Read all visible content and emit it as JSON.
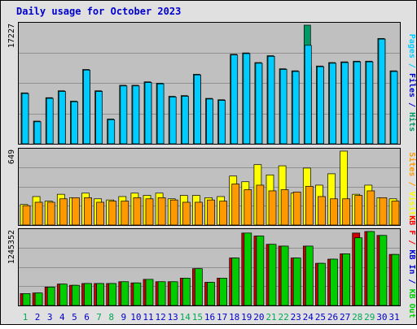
{
  "chart_data": {
    "type": "bar",
    "title": "Daily usage for October 2023",
    "days": [
      "1",
      "2",
      "3",
      "4",
      "5",
      "6",
      "7",
      "8",
      "9",
      "10",
      "11",
      "12",
      "13",
      "14",
      "15",
      "16",
      "17",
      "18",
      "19",
      "20",
      "21",
      "22",
      "23",
      "24",
      "25",
      "26",
      "27",
      "28",
      "29",
      "30",
      "31"
    ],
    "weekend_days": [
      "1",
      "7",
      "8",
      "14",
      "15",
      "21",
      "22",
      "28",
      "29"
    ],
    "colors": {
      "frame_bg": "#E0E0E0",
      "plot_bg": "#C0C0C0",
      "border": "#000000",
      "title": "#0000CC",
      "weekday_label": "#0000CC",
      "weekend_label": "#00AA55",
      "gridline": "#909090"
    },
    "panels": [
      {
        "id": "pages-files-hits",
        "max_label": "17227",
        "ymax": 17227,
        "legend": [
          {
            "text": "Pages",
            "color": "#00CCFF"
          },
          {
            "text": " / ",
            "color": "#00CCFF"
          },
          {
            "text": "Files",
            "color": "#0000CC"
          },
          {
            "text": " / ",
            "color": "#0000CC"
          },
          {
            "text": "Hits",
            "color": "#009966"
          }
        ],
        "series": [
          {
            "name": "Hits",
            "color": "#009966",
            "values": [
              7400,
              3300,
              6700,
              7700,
              6200,
              10800,
              7700,
              3600,
              8500,
              8500,
              9000,
              8800,
              6900,
              7000,
              10100,
              6600,
              6400,
              13000,
              13200,
              11800,
              12800,
              10900,
              10600,
              17227,
              11300,
              11800,
              11900,
              12000,
              12000,
              15300,
              10600
            ]
          },
          {
            "name": "Files",
            "color": "#0000CC",
            "values": [
              7300,
              3200,
              6600,
              7600,
              6100,
              10700,
              7600,
              3500,
              8400,
              8400,
              8900,
              8700,
              6800,
              6900,
              10000,
              6500,
              6300,
              12900,
              13100,
              11700,
              12700,
              10800,
              10500,
              11200,
              11200,
              11700,
              11800,
              11900,
              11900,
              15200,
              10500
            ]
          },
          {
            "name": "Pages",
            "color": "#00CCFF",
            "values": [
              7300,
              3200,
              6600,
              7600,
              6100,
              10700,
              7600,
              3500,
              8400,
              8400,
              8900,
              8700,
              6800,
              6900,
              10000,
              6500,
              6300,
              12900,
              13100,
              11700,
              12700,
              10800,
              10500,
              14300,
              11200,
              11700,
              11800,
              11900,
              11900,
              15200,
              10500
            ]
          }
        ]
      },
      {
        "id": "visits-sites",
        "max_label": "649",
        "ymax": 649,
        "legend": [
          {
            "text": "Sites",
            "color": "#FF9900"
          },
          {
            "text": " / ",
            "color": "#FF9900"
          },
          {
            "text": "Visits",
            "color": "#FFFF00"
          }
        ],
        "series": [
          {
            "name": "Visits",
            "color": "#FFFF00",
            "values": [
              180,
              250,
              210,
              270,
              240,
              280,
              230,
              220,
              250,
              280,
              260,
              280,
              230,
              260,
              260,
              240,
              250,
              430,
              380,
              530,
              440,
              520,
              280,
              500,
              350,
              450,
              649,
              270,
              350,
              240,
              230
            ]
          },
          {
            "name": "Sites",
            "color": "#FF9900",
            "values": [
              170,
              200,
              200,
              230,
              240,
              240,
              200,
              210,
              210,
              240,
              230,
              240,
              220,
              200,
              200,
              220,
              210,
              360,
              310,
              350,
              300,
              310,
              290,
              340,
              250,
              230,
              230,
              260,
              300,
              240,
              210
            ]
          }
        ]
      },
      {
        "id": "kbf-kbin-kbout",
        "max_label": "1245352",
        "ymax": 1245352,
        "legend": [
          {
            "text": "KB F",
            "color": "#FF0000"
          },
          {
            "text": " / ",
            "color": "#FF0000"
          },
          {
            "text": "KB In",
            "color": "#0000CC"
          },
          {
            "text": " / ",
            "color": "#0000CC"
          },
          {
            "text": "KB Out",
            "color": "#00CC00"
          }
        ],
        "series": [
          {
            "name": "KB F",
            "color": "#CC0000",
            "values": [
              200000,
              210000,
              310000,
              360000,
              340000,
              370000,
              370000,
              370000,
              400000,
              380000,
              440000,
              400000,
              400000,
              460000,
              620000,
              390000,
              460000,
              800000,
              1220000,
              1170000,
              1030000,
              1000000,
              800000,
              1000000,
              710000,
              780000,
              870000,
              1220000,
              1245352,
              1180000,
              860000
            ]
          },
          {
            "name": "KB Out",
            "color": "#00CC00",
            "values": [
              200000,
              210000,
              310000,
              360000,
              340000,
              370000,
              370000,
              370000,
              400000,
              380000,
              440000,
              400000,
              400000,
              460000,
              620000,
              390000,
              460000,
              800000,
              1220000,
              1170000,
              1030000,
              1000000,
              800000,
              1000000,
              710000,
              780000,
              870000,
              1140000,
              1245352,
              1180000,
              860000
            ]
          }
        ]
      }
    ]
  }
}
